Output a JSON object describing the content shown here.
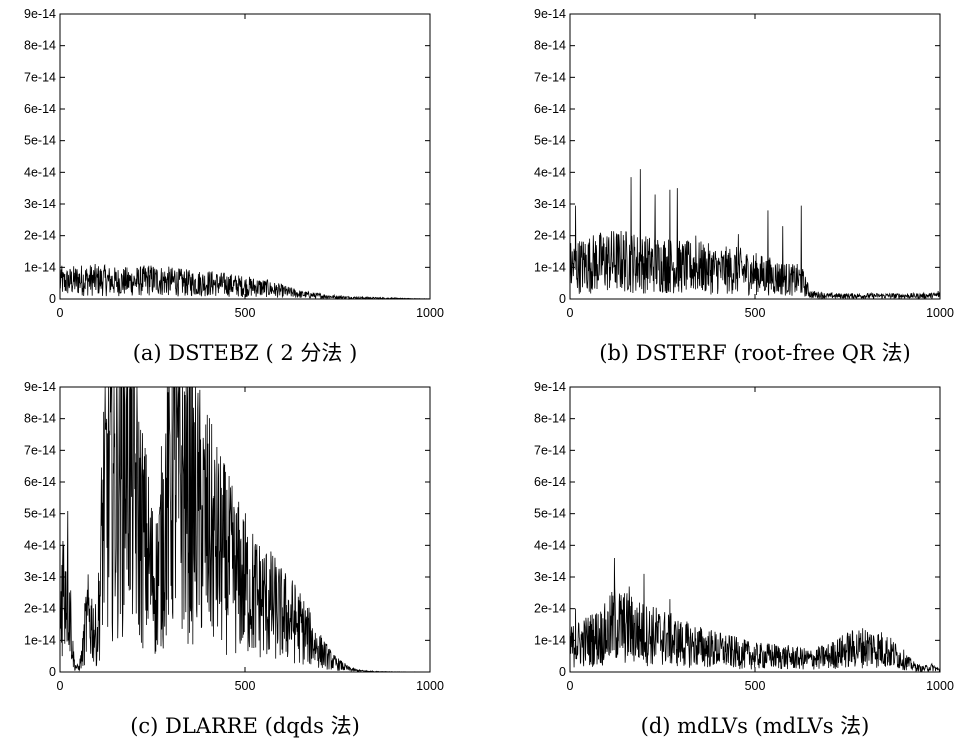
{
  "chart_data": [
    {
      "type": "line",
      "caption": "(a) DSTEBZ ( 2 分法 )",
      "xlim": [
        0,
        1000
      ],
      "ylim": [
        0,
        9e-14
      ],
      "x_ticks": [
        "0",
        "500",
        "1000"
      ],
      "y_ticks": [
        "0",
        "1e-14",
        "2e-14",
        "3e-14",
        "4e-14",
        "5e-14",
        "6e-14",
        "7e-14",
        "8e-14",
        "9e-14"
      ],
      "series": [
        {
          "x": [
            0,
            50,
            100,
            150,
            200,
            250,
            300,
            350,
            400,
            450,
            500,
            550,
            600,
            650,
            700,
            750,
            800,
            850,
            900,
            950,
            1000
          ],
          "y": [
            5e-15,
            6e-15,
            6e-15,
            5.5e-15,
            5.5e-15,
            6e-15,
            5.5e-15,
            5e-15,
            5e-15,
            4.5e-15,
            4e-15,
            3.5e-15,
            2.5e-15,
            1.5e-15,
            1e-15,
            6e-16,
            4e-16,
            3e-16,
            2e-16,
            1e-16,
            5e-17
          ],
          "peaks": [
            [
              5,
              1.05e-14
            ],
            [
              120,
              1.05e-14
            ],
            [
              240,
              1.05e-14
            ],
            [
              310,
              9e-15
            ],
            [
              460,
              7e-15
            ],
            [
              560,
              6e-15
            ]
          ]
        }
      ]
    },
    {
      "type": "line",
      "caption": "(b) DSTERF (root-free QR 法)",
      "xlim": [
        0,
        1000
      ],
      "ylim": [
        0,
        9e-14
      ],
      "x_ticks": [
        "0",
        "500",
        "1000"
      ],
      "y_ticks": [
        "0",
        "1e-14",
        "2e-14",
        "3e-14",
        "4e-14",
        "5e-14",
        "6e-14",
        "7e-14",
        "8e-14",
        "9e-14"
      ],
      "series": [
        {
          "x": [
            0,
            50,
            100,
            150,
            200,
            250,
            300,
            350,
            400,
            450,
            500,
            550,
            600,
            625,
            650,
            700,
            750,
            800,
            850,
            900,
            950,
            1000
          ],
          "y": [
            1e-14,
            1.1e-14,
            1.2e-14,
            1.2e-14,
            1.1e-14,
            1.1e-14,
            1e-14,
            1e-14,
            9e-15,
            9e-15,
            8e-15,
            7e-15,
            6e-15,
            6e-15,
            1.5e-15,
            1e-15,
            1e-15,
            1e-15,
            1e-15,
            1e-15,
            1e-15,
            1.2e-15
          ],
          "peaks": [
            [
              15,
              2.95e-14
            ],
            [
              165,
              3.85e-14
            ],
            [
              190,
              4.1e-14
            ],
            [
              230,
              3.3e-14
            ],
            [
              270,
              3.45e-14
            ],
            [
              290,
              3.5e-14
            ],
            [
              340,
              2e-14
            ],
            [
              455,
              2.05e-14
            ],
            [
              535,
              2.8e-14
            ],
            [
              575,
              2.3e-14
            ],
            [
              625,
              2.95e-14
            ],
            [
              995,
              2.5e-15
            ]
          ]
        }
      ]
    },
    {
      "type": "line",
      "caption": "(c) DLARRE (dqds 法)",
      "xlim": [
        0,
        1000
      ],
      "ylim": [
        0,
        9e-14
      ],
      "x_ticks": [
        "0",
        "500",
        "1000"
      ],
      "y_ticks": [
        "0",
        "1e-14",
        "2e-14",
        "3e-14",
        "4e-14",
        "5e-14",
        "6e-14",
        "7e-14",
        "8e-14",
        "9e-14"
      ],
      "series": [
        {
          "x": [
            0,
            5,
            10,
            20,
            25,
            30,
            35,
            40,
            50,
            60,
            70,
            80,
            90,
            100,
            110,
            115,
            120,
            130,
            140,
            150,
            160,
            170,
            180,
            190,
            200,
            210,
            220,
            230,
            240,
            250,
            260,
            270,
            280,
            290,
            300,
            310,
            320,
            340,
            360,
            380,
            400,
            420,
            440,
            460,
            480,
            500,
            520,
            540,
            560,
            580,
            600,
            620,
            640,
            660,
            680,
            700,
            720,
            740,
            760,
            780,
            800,
            820,
            840,
            860,
            880,
            900,
            950,
            1000
          ],
          "y": [
            1e-14,
            2.9e-14,
            2.8e-14,
            3.2e-14,
            2.3e-14,
            1.5e-14,
            6e-15,
            2e-15,
            1e-15,
            5e-15,
            1.5e-14,
            1.8e-14,
            1.4e-14,
            1e-14,
            3e-14,
            4.8e-14,
            5.3e-14,
            5.8e-14,
            6.3e-14,
            6e-14,
            6.8e-14,
            7.2e-14,
            8e-14,
            7.5e-14,
            6e-14,
            5e-14,
            4.5e-14,
            4e-14,
            3.5e-14,
            3e-14,
            2.8e-14,
            3.5e-14,
            4.5e-14,
            5.5e-14,
            6.3e-14,
            6.5e-14,
            6.2e-14,
            5.8e-14,
            5.3e-14,
            4.9e-14,
            4.5e-14,
            4e-14,
            3.7e-14,
            3.3e-14,
            3e-14,
            2.8e-14,
            2.5e-14,
            2.3e-14,
            2.2e-14,
            2e-14,
            1.8e-14,
            1.7e-14,
            1.5e-14,
            1.3e-14,
            1e-14,
            7e-15,
            5e-15,
            3e-15,
            2e-15,
            1e-15,
            5e-16,
            3e-16,
            2e-16,
            1e-16,
            1e-16,
            5e-17,
            3e-17,
            1e-17
          ],
          "peaks": [
            [
              20,
              3.6e-14
            ],
            [
              180,
              8.5e-14
            ],
            [
              310,
              6.7e-14
            ]
          ]
        }
      ]
    },
    {
      "type": "line",
      "caption": "(d) mdLVs (mdLVs 法)",
      "xlim": [
        0,
        1000
      ],
      "ylim": [
        0,
        9e-14
      ],
      "x_ticks": [
        "0",
        "500",
        "1000"
      ],
      "y_ticks": [
        "0",
        "1e-14",
        "2e-14",
        "3e-14",
        "4e-14",
        "5e-14",
        "6e-14",
        "7e-14",
        "8e-14",
        "9e-14"
      ],
      "series": [
        {
          "x": [
            0,
            50,
            100,
            120,
            150,
            200,
            250,
            300,
            350,
            400,
            450,
            500,
            550,
            600,
            650,
            700,
            750,
            800,
            850,
            900,
            925,
            950,
            980,
            1000
          ],
          "y": [
            8e-15,
            1e-14,
            1.2e-14,
            1.5e-14,
            1.4e-14,
            1.2e-14,
            1.1e-14,
            9e-15,
            8e-15,
            7e-15,
            6e-15,
            5e-15,
            5e-15,
            4.5e-15,
            4e-15,
            5e-15,
            7e-15,
            8e-15,
            7e-15,
            4e-15,
            2e-15,
            1e-15,
            1.5e-15,
            5e-16
          ],
          "peaks": [
            [
              120,
              3.6e-14
            ],
            [
              200,
              3.1e-14
            ],
            [
              160,
              2.7e-14
            ],
            [
              270,
              2.3e-14
            ],
            [
              15,
              2e-14
            ]
          ]
        }
      ]
    }
  ]
}
